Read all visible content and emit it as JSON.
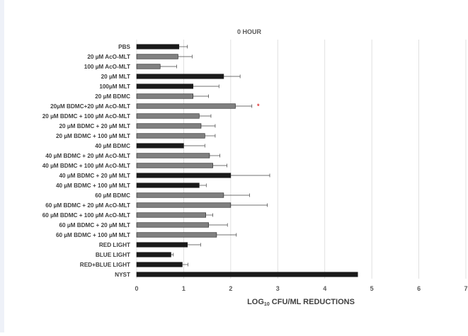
{
  "chart_data": {
    "type": "bar",
    "orientation": "horizontal",
    "title": "0 HOUR",
    "xlabel_prefix": "LOG",
    "xlabel_sub": "10",
    "xlabel_suffix": " CFU/ML REDUCTIONS",
    "xlim": [
      0,
      7
    ],
    "xticks": [
      "0",
      "1",
      "2",
      "3",
      "4",
      "5",
      "6",
      "7"
    ],
    "grid": "vertical",
    "legend": "none",
    "categories": [
      "PBS",
      "20 µM AcO-MLT",
      "100 µM AcO-MLT",
      "20 µM MLT",
      "100µM MLT",
      "20 µM BDMC",
      "20µM BDMC+20 µM AcO-MLT",
      "20 µM  BDMC + 100 µM  AcO-MLT",
      "20 µM BDMC +  20 µM MLT",
      "20  µM BDMC + 100 µM MLT",
      "40 µM BDMC",
      "40 µM BDMC + 20 µM  AcO-MLT",
      "40 µM BDMC + 100 µM AcO-MLT",
      "40 µM BDMC + 20 µM MLT",
      "40 µM BDMC + 100 µM MLT",
      "60 µM BDMC",
      "60 µM BDMC + 20 µM  AcO-MLT",
      "60 µM BDMC + 100 µM  AcO-MLT",
      "60 µM BDMC + 20 µM MLT",
      "60 µM BDMC + 100 µM MLT",
      "RED LIGHT",
      "BLUE LIGHT",
      "RED+BLUE LIGHT",
      "NYST"
    ],
    "values": [
      0.9,
      0.88,
      0.5,
      1.85,
      1.2,
      1.2,
      2.1,
      1.33,
      1.37,
      1.45,
      1.0,
      1.55,
      1.62,
      2.0,
      1.33,
      1.85,
      2.0,
      1.47,
      1.53,
      1.7,
      1.08,
      0.73,
      0.97,
      4.7
    ],
    "errors": [
      0.18,
      0.3,
      0.35,
      0.35,
      0.55,
      0.33,
      0.35,
      0.25,
      0.3,
      0.22,
      0.45,
      0.22,
      0.3,
      0.83,
      0.15,
      0.55,
      0.78,
      0.15,
      0.4,
      0.42,
      0.28,
      0.05,
      0.12,
      0
    ],
    "colors": [
      "#1a1a1a",
      "#808080",
      "#808080",
      "#1a1a1a",
      "#1a1a1a",
      "#808080",
      "#808080",
      "#808080",
      "#808080",
      "#808080",
      "#1a1a1a",
      "#808080",
      "#808080",
      "#1a1a1a",
      "#1a1a1a",
      "#808080",
      "#808080",
      "#808080",
      "#808080",
      "#808080",
      "#1a1a1a",
      "#1a1a1a",
      "#1a1a1a",
      "#1a1a1a"
    ],
    "annotation": {
      "text": "*",
      "category_index": 6,
      "color": "#e03030"
    }
  }
}
